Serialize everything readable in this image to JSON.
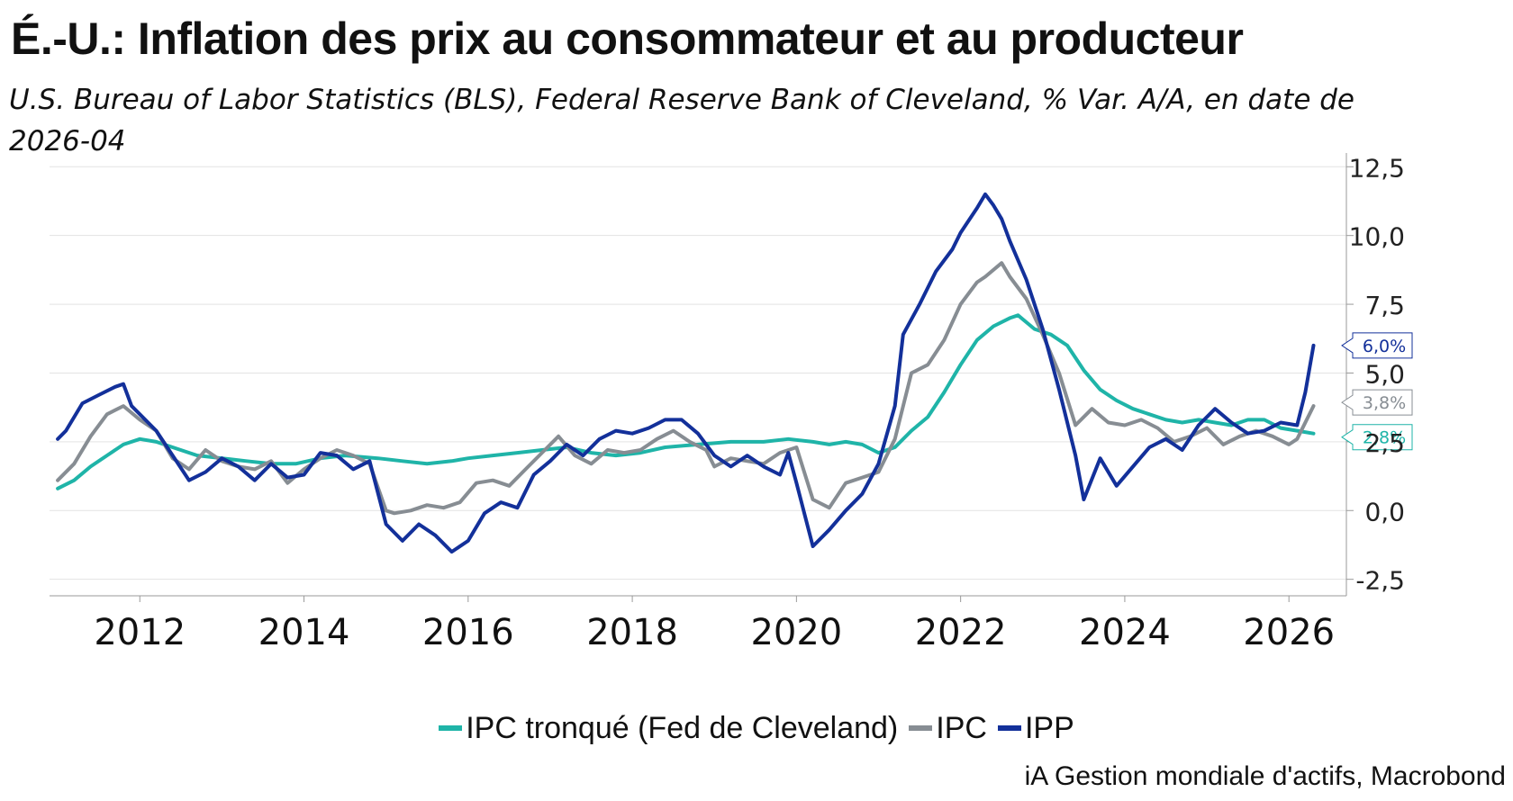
{
  "title": "É.-U.: Inflation des prix au consommateur et au producteur",
  "subtitle": "U.S. Bureau of Labor Statistics (BLS), Federal Reserve Bank of Cleveland, % Var. A/A, en date de 2026-04",
  "source": "iA Gestion mondiale d'actifs, Macrobond",
  "colors": {
    "trimmed": "#1fb4a8",
    "cpi": "#878d93",
    "ppi": "#13309a"
  },
  "chart_data": {
    "type": "line",
    "x_unit": "year",
    "xlim": [
      2010.9,
      2026.7
    ],
    "ylim": [
      -3.1,
      13.0
    ],
    "x_ticks": [
      2012,
      2014,
      2016,
      2018,
      2020,
      2022,
      2024,
      2026
    ],
    "x_tick_labels": [
      "2012",
      "2014",
      "2016",
      "2018",
      "2020",
      "2022",
      "2024",
      "2026"
    ],
    "y_ticks": [
      12.5,
      10.0,
      7.5,
      5.0,
      2.5,
      0.0,
      -2.5
    ],
    "y_tick_labels": [
      "12,5",
      "10,0",
      "7,5",
      "5,0",
      "2,5",
      "0,0",
      "-2,5"
    ],
    "grid": true,
    "y_axis_position": "right",
    "legend_position": "bottom",
    "series": [
      {
        "name": "IPC tronqué (Fed de Cleveland)",
        "color_key": "trimmed",
        "end_label": "2,8%",
        "points": [
          [
            2011.0,
            0.8
          ],
          [
            2011.2,
            1.1
          ],
          [
            2011.4,
            1.6
          ],
          [
            2011.6,
            2.0
          ],
          [
            2011.8,
            2.4
          ],
          [
            2012.0,
            2.6
          ],
          [
            2012.2,
            2.5
          ],
          [
            2012.4,
            2.3
          ],
          [
            2012.7,
            2.0
          ],
          [
            2013.0,
            1.9
          ],
          [
            2013.3,
            1.8
          ],
          [
            2013.6,
            1.7
          ],
          [
            2013.9,
            1.7
          ],
          [
            2014.2,
            1.9
          ],
          [
            2014.5,
            2.0
          ],
          [
            2014.9,
            1.9
          ],
          [
            2015.2,
            1.8
          ],
          [
            2015.5,
            1.7
          ],
          [
            2015.8,
            1.8
          ],
          [
            2016.0,
            1.9
          ],
          [
            2016.3,
            2.0
          ],
          [
            2016.6,
            2.1
          ],
          [
            2016.9,
            2.2
          ],
          [
            2017.2,
            2.3
          ],
          [
            2017.5,
            2.1
          ],
          [
            2017.8,
            2.0
          ],
          [
            2018.1,
            2.1
          ],
          [
            2018.4,
            2.3
          ],
          [
            2018.8,
            2.4
          ],
          [
            2019.2,
            2.5
          ],
          [
            2019.6,
            2.5
          ],
          [
            2019.9,
            2.6
          ],
          [
            2020.2,
            2.5
          ],
          [
            2020.4,
            2.4
          ],
          [
            2020.6,
            2.5
          ],
          [
            2020.8,
            2.4
          ],
          [
            2021.0,
            2.1
          ],
          [
            2021.2,
            2.3
          ],
          [
            2021.4,
            2.9
          ],
          [
            2021.6,
            3.4
          ],
          [
            2021.8,
            4.3
          ],
          [
            2022.0,
            5.3
          ],
          [
            2022.2,
            6.2
          ],
          [
            2022.4,
            6.7
          ],
          [
            2022.6,
            7.0
          ],
          [
            2022.7,
            7.1
          ],
          [
            2022.9,
            6.6
          ],
          [
            2023.1,
            6.4
          ],
          [
            2023.3,
            6.0
          ],
          [
            2023.5,
            5.1
          ],
          [
            2023.7,
            4.4
          ],
          [
            2023.9,
            4.0
          ],
          [
            2024.1,
            3.7
          ],
          [
            2024.3,
            3.5
          ],
          [
            2024.5,
            3.3
          ],
          [
            2024.7,
            3.2
          ],
          [
            2024.9,
            3.3
          ],
          [
            2025.1,
            3.2
          ],
          [
            2025.3,
            3.1
          ],
          [
            2025.5,
            3.3
          ],
          [
            2025.7,
            3.3
          ],
          [
            2025.9,
            3.0
          ],
          [
            2026.1,
            2.9
          ],
          [
            2026.3,
            2.8
          ]
        ]
      },
      {
        "name": "IPC",
        "color_key": "cpi",
        "end_label": "3,8%",
        "points": [
          [
            2011.0,
            1.1
          ],
          [
            2011.2,
            1.7
          ],
          [
            2011.4,
            2.7
          ],
          [
            2011.6,
            3.5
          ],
          [
            2011.8,
            3.8
          ],
          [
            2012.0,
            3.3
          ],
          [
            2012.2,
            2.9
          ],
          [
            2012.4,
            1.9
          ],
          [
            2012.6,
            1.5
          ],
          [
            2012.8,
            2.2
          ],
          [
            2013.0,
            1.8
          ],
          [
            2013.2,
            1.6
          ],
          [
            2013.4,
            1.5
          ],
          [
            2013.6,
            1.8
          ],
          [
            2013.8,
            1.0
          ],
          [
            2014.0,
            1.5
          ],
          [
            2014.2,
            1.9
          ],
          [
            2014.4,
            2.2
          ],
          [
            2014.6,
            2.0
          ],
          [
            2014.8,
            1.7
          ],
          [
            2015.0,
            0.0
          ],
          [
            2015.1,
            -0.1
          ],
          [
            2015.3,
            0.0
          ],
          [
            2015.5,
            0.2
          ],
          [
            2015.7,
            0.1
          ],
          [
            2015.9,
            0.3
          ],
          [
            2016.1,
            1.0
          ],
          [
            2016.3,
            1.1
          ],
          [
            2016.5,
            0.9
          ],
          [
            2016.7,
            1.5
          ],
          [
            2016.9,
            2.1
          ],
          [
            2017.1,
            2.7
          ],
          [
            2017.3,
            2.0
          ],
          [
            2017.5,
            1.7
          ],
          [
            2017.7,
            2.2
          ],
          [
            2017.9,
            2.1
          ],
          [
            2018.1,
            2.2
          ],
          [
            2018.3,
            2.6
          ],
          [
            2018.5,
            2.9
          ],
          [
            2018.7,
            2.5
          ],
          [
            2018.9,
            2.2
          ],
          [
            2019.0,
            1.6
          ],
          [
            2019.2,
            1.9
          ],
          [
            2019.4,
            1.8
          ],
          [
            2019.6,
            1.7
          ],
          [
            2019.8,
            2.1
          ],
          [
            2020.0,
            2.3
          ],
          [
            2020.2,
            0.4
          ],
          [
            2020.4,
            0.1
          ],
          [
            2020.6,
            1.0
          ],
          [
            2020.8,
            1.2
          ],
          [
            2021.0,
            1.4
          ],
          [
            2021.2,
            2.6
          ],
          [
            2021.4,
            5.0
          ],
          [
            2021.6,
            5.3
          ],
          [
            2021.8,
            6.2
          ],
          [
            2022.0,
            7.5
          ],
          [
            2022.2,
            8.3
          ],
          [
            2022.3,
            8.5
          ],
          [
            2022.5,
            9.0
          ],
          [
            2022.6,
            8.5
          ],
          [
            2022.8,
            7.7
          ],
          [
            2023.0,
            6.4
          ],
          [
            2023.2,
            5.0
          ],
          [
            2023.4,
            3.1
          ],
          [
            2023.6,
            3.7
          ],
          [
            2023.8,
            3.2
          ],
          [
            2024.0,
            3.1
          ],
          [
            2024.2,
            3.3
          ],
          [
            2024.4,
            3.0
          ],
          [
            2024.6,
            2.5
          ],
          [
            2024.8,
            2.7
          ],
          [
            2025.0,
            3.0
          ],
          [
            2025.2,
            2.4
          ],
          [
            2025.4,
            2.7
          ],
          [
            2025.6,
            2.9
          ],
          [
            2025.8,
            2.7
          ],
          [
            2026.0,
            2.4
          ],
          [
            2026.1,
            2.6
          ],
          [
            2026.3,
            3.8
          ]
        ]
      },
      {
        "name": "IPP",
        "color_key": "ppi",
        "end_label": "6,0%",
        "points": [
          [
            2011.0,
            2.6
          ],
          [
            2011.1,
            2.9
          ],
          [
            2011.3,
            3.9
          ],
          [
            2011.5,
            4.2
          ],
          [
            2011.7,
            4.5
          ],
          [
            2011.8,
            4.6
          ],
          [
            2011.9,
            3.8
          ],
          [
            2012.0,
            3.5
          ],
          [
            2012.2,
            2.9
          ],
          [
            2012.4,
            2.0
          ],
          [
            2012.6,
            1.1
          ],
          [
            2012.8,
            1.4
          ],
          [
            2013.0,
            1.9
          ],
          [
            2013.2,
            1.6
          ],
          [
            2013.4,
            1.1
          ],
          [
            2013.6,
            1.7
          ],
          [
            2013.8,
            1.2
          ],
          [
            2014.0,
            1.3
          ],
          [
            2014.2,
            2.1
          ],
          [
            2014.4,
            2.0
          ],
          [
            2014.6,
            1.5
          ],
          [
            2014.8,
            1.8
          ],
          [
            2015.0,
            -0.5
          ],
          [
            2015.2,
            -1.1
          ],
          [
            2015.4,
            -0.5
          ],
          [
            2015.6,
            -0.9
          ],
          [
            2015.8,
            -1.5
          ],
          [
            2016.0,
            -1.1
          ],
          [
            2016.2,
            -0.1
          ],
          [
            2016.4,
            0.3
          ],
          [
            2016.6,
            0.1
          ],
          [
            2016.8,
            1.3
          ],
          [
            2017.0,
            1.8
          ],
          [
            2017.2,
            2.4
          ],
          [
            2017.4,
            2.0
          ],
          [
            2017.6,
            2.6
          ],
          [
            2017.8,
            2.9
          ],
          [
            2018.0,
            2.8
          ],
          [
            2018.2,
            3.0
          ],
          [
            2018.4,
            3.3
          ],
          [
            2018.6,
            3.3
          ],
          [
            2018.8,
            2.8
          ],
          [
            2019.0,
            2.0
          ],
          [
            2019.2,
            1.6
          ],
          [
            2019.4,
            2.0
          ],
          [
            2019.6,
            1.6
          ],
          [
            2019.8,
            1.3
          ],
          [
            2019.9,
            2.1
          ],
          [
            2020.0,
            1.0
          ],
          [
            2020.2,
            -1.3
          ],
          [
            2020.4,
            -0.7
          ],
          [
            2020.6,
            0.0
          ],
          [
            2020.8,
            0.6
          ],
          [
            2021.0,
            1.7
          ],
          [
            2021.2,
            3.8
          ],
          [
            2021.3,
            6.4
          ],
          [
            2021.5,
            7.5
          ],
          [
            2021.7,
            8.7
          ],
          [
            2021.9,
            9.5
          ],
          [
            2022.0,
            10.1
          ],
          [
            2022.2,
            11.0
          ],
          [
            2022.3,
            11.5
          ],
          [
            2022.4,
            11.1
          ],
          [
            2022.5,
            10.6
          ],
          [
            2022.6,
            9.8
          ],
          [
            2022.8,
            8.4
          ],
          [
            2023.0,
            6.6
          ],
          [
            2023.2,
            4.4
          ],
          [
            2023.4,
            2.0
          ],
          [
            2023.5,
            0.4
          ],
          [
            2023.7,
            1.9
          ],
          [
            2023.9,
            0.9
          ],
          [
            2024.1,
            1.6
          ],
          [
            2024.3,
            2.3
          ],
          [
            2024.5,
            2.6
          ],
          [
            2024.7,
            2.2
          ],
          [
            2024.9,
            3.1
          ],
          [
            2025.1,
            3.7
          ],
          [
            2025.3,
            3.2
          ],
          [
            2025.5,
            2.8
          ],
          [
            2025.7,
            2.9
          ],
          [
            2025.9,
            3.2
          ],
          [
            2026.1,
            3.1
          ],
          [
            2026.2,
            4.3
          ],
          [
            2026.3,
            6.0
          ]
        ]
      }
    ]
  }
}
